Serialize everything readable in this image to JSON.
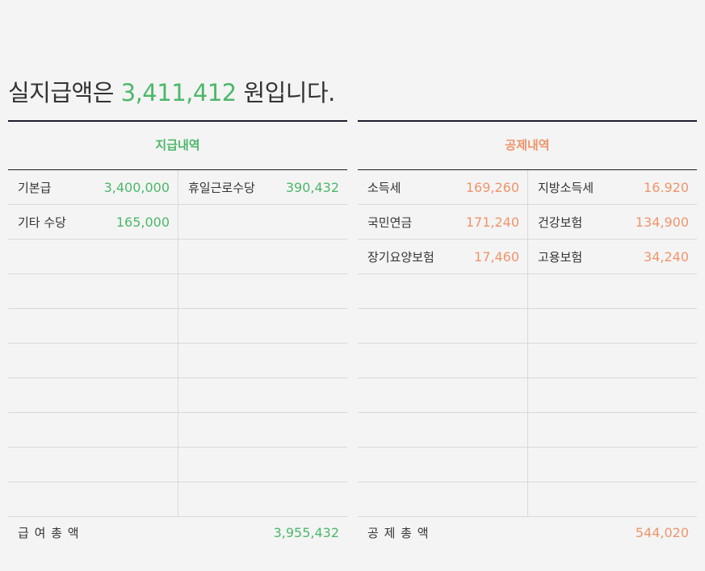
{
  "headline": {
    "prefix": "실지급액은",
    "amount": "3,411,412",
    "suffix": "원입니다."
  },
  "payments": {
    "title": "지급내역",
    "rows": [
      [
        {
          "label": "기본급",
          "value": "3,400,000"
        },
        {
          "label": "휴일근로수당",
          "value": "390,432"
        }
      ],
      [
        {
          "label": "기타 수당",
          "value": "165,000"
        },
        {
          "label": "",
          "value": ""
        }
      ],
      [
        {
          "label": "",
          "value": ""
        },
        {
          "label": "",
          "value": ""
        }
      ],
      [
        {
          "label": "",
          "value": ""
        },
        {
          "label": "",
          "value": ""
        }
      ],
      [
        {
          "label": "",
          "value": ""
        },
        {
          "label": "",
          "value": ""
        }
      ],
      [
        {
          "label": "",
          "value": ""
        },
        {
          "label": "",
          "value": ""
        }
      ],
      [
        {
          "label": "",
          "value": ""
        },
        {
          "label": "",
          "value": ""
        }
      ],
      [
        {
          "label": "",
          "value": ""
        },
        {
          "label": "",
          "value": ""
        }
      ],
      [
        {
          "label": "",
          "value": ""
        },
        {
          "label": "",
          "value": ""
        }
      ],
      [
        {
          "label": "",
          "value": ""
        },
        {
          "label": "",
          "value": ""
        }
      ]
    ],
    "total_label": "급 여 총 액",
    "total_value": "3,955,432"
  },
  "deductions": {
    "title": "공제내역",
    "rows": [
      [
        {
          "label": "소득세",
          "value": "169,260"
        },
        {
          "label": "지방소득세",
          "value": "16.920"
        }
      ],
      [
        {
          "label": "국민연금",
          "value": "171,240"
        },
        {
          "label": "건강보험",
          "value": "134,900"
        }
      ],
      [
        {
          "label": "장기요양보험",
          "value": "17,460"
        },
        {
          "label": "고용보험",
          "value": "34,240"
        }
      ],
      [
        {
          "label": "",
          "value": ""
        },
        {
          "label": "",
          "value": ""
        }
      ],
      [
        {
          "label": "",
          "value": ""
        },
        {
          "label": "",
          "value": ""
        }
      ],
      [
        {
          "label": "",
          "value": ""
        },
        {
          "label": "",
          "value": ""
        }
      ],
      [
        {
          "label": "",
          "value": ""
        },
        {
          "label": "",
          "value": ""
        }
      ],
      [
        {
          "label": "",
          "value": ""
        },
        {
          "label": "",
          "value": ""
        }
      ],
      [
        {
          "label": "",
          "value": ""
        },
        {
          "label": "",
          "value": ""
        }
      ],
      [
        {
          "label": "",
          "value": ""
        },
        {
          "label": "",
          "value": ""
        }
      ]
    ],
    "total_label": "공 제 총 액",
    "total_value": "544,020"
  }
}
